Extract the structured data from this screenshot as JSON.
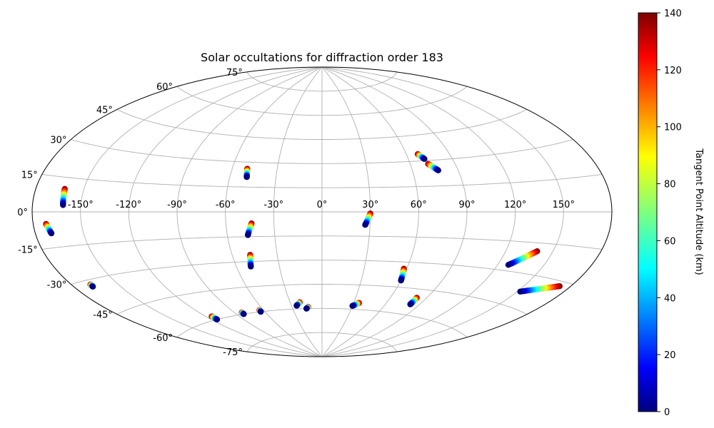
{
  "chart_data": {
    "type": "scatter",
    "projection": "aitoff",
    "title": "Solar occultations for diffraction order 183",
    "x_ticks": [
      "-150°",
      "-120°",
      "-90°",
      "-60°",
      "-30°",
      "0°",
      "30°",
      "60°",
      "90°",
      "120°",
      "150°"
    ],
    "x_tick_values": [
      -150,
      -120,
      -90,
      -60,
      -30,
      0,
      30,
      60,
      90,
      120,
      150
    ],
    "y_ticks": [
      "-75°",
      "-60°",
      "-45°",
      "-30°",
      "-15°",
      "0°",
      "15°",
      "30°",
      "45°",
      "60°",
      "75°"
    ],
    "y_tick_values": [
      -75,
      -60,
      -45,
      -30,
      -15,
      0,
      15,
      30,
      45,
      60,
      75
    ],
    "grid": true,
    "colorbar": {
      "label": "Tangent Point Altitude (km)",
      "range": [
        0,
        140
      ],
      "ticks": [
        "0",
        "20",
        "40",
        "60",
        "80",
        "100",
        "120",
        "140"
      ],
      "tick_values": [
        0,
        20,
        40,
        60,
        80,
        100,
        120,
        140
      ],
      "colormap": "jet"
    },
    "series": [
      {
        "start": [
          -172,
          -5
        ],
        "end": [
          -170,
          -9
        ]
      },
      {
        "start": [
          -162,
          10
        ],
        "end": [
          -161,
          3
        ]
      },
      {
        "start": [
          -168,
          -32
        ],
        "end": [
          -168,
          -33
        ]
      },
      {
        "start": [
          -50,
          26
        ],
        "end": [
          -49,
          21
        ]
      },
      {
        "start": [
          -44,
          -7
        ],
        "end": [
          -47,
          -14
        ]
      },
      {
        "start": [
          -48,
          -26
        ],
        "end": [
          -50,
          -33
        ]
      },
      {
        "start": [
          -115,
          -58
        ],
        "end": [
          -115,
          -60
        ]
      },
      {
        "start": [
          -83,
          -59
        ],
        "end": [
          -83,
          -60
        ]
      },
      {
        "start": [
          -64,
          -59
        ],
        "end": [
          -64,
          -60
        ]
      },
      {
        "start": [
          -21,
          -56
        ],
        "end": [
          -25,
          -58
        ]
      },
      {
        "start": [
          -14,
          -59
        ],
        "end": [
          -16,
          -60
        ]
      },
      {
        "start": [
          35,
          -56
        ],
        "end": [
          30,
          -58
        ]
      },
      {
        "start": [
          30,
          -1
        ],
        "end": [
          27,
          -8
        ]
      },
      {
        "start": [
          58,
          -34
        ],
        "end": [
          60,
          -41
        ]
      },
      {
        "start": [
          68,
          34
        ],
        "end": [
          71,
          31
        ]
      },
      {
        "start": [
          72,
          28
        ],
        "end": [
          77,
          24
        ]
      },
      {
        "start": [
          82,
          -50
        ],
        "end": [
          82,
          -54
        ]
      },
      {
        "start": [
          140,
          -19
        ],
        "end": [
          127,
          -27
        ]
      },
      {
        "start": [
          173,
          -32
        ],
        "end": [
          152,
          -38
        ]
      }
    ],
    "altitude_range": [
      0,
      140
    ]
  }
}
